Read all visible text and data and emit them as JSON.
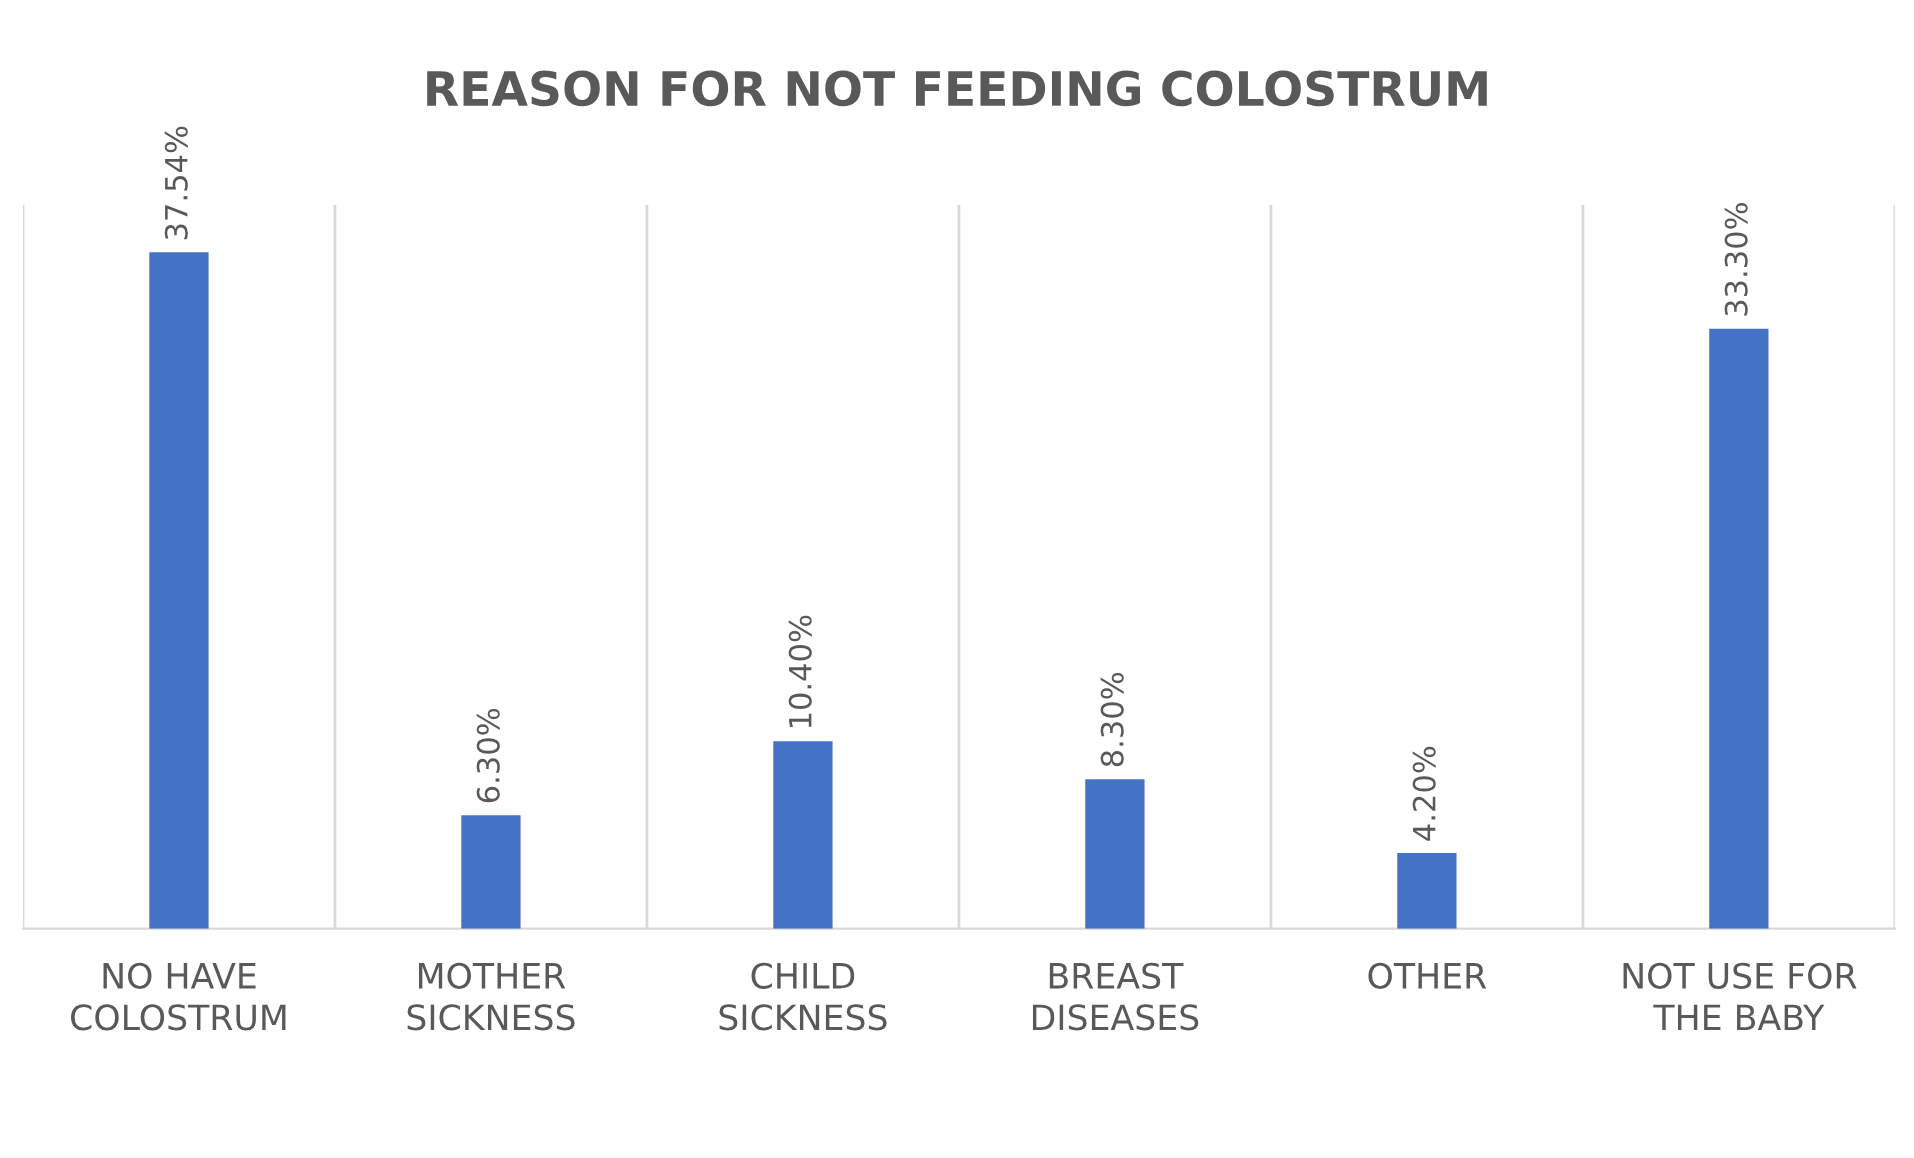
{
  "chart_data": {
    "type": "bar",
    "title": "REASON FOR NOT FEEDING COLOSTRUM",
    "categories": [
      "NO HAVE\nCOLOSTRUM",
      "MOTHER\nSICKNESS",
      "CHILD\nSICKNESS",
      "BREAST\nDISEASES",
      "OTHER",
      "NOT USE FOR\nTHE BABY"
    ],
    "values": [
      37.54,
      6.3,
      10.4,
      8.3,
      4.2,
      33.3
    ],
    "value_labels": [
      "37.54%",
      "6.30%",
      "10.40%",
      "8.30%",
      "4.20%",
      "33.30%"
    ],
    "color": "#4472c4",
    "grid": "x",
    "legend": false
  }
}
